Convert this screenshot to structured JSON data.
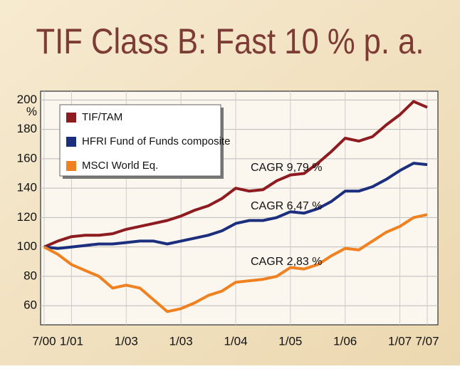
{
  "chart_data": {
    "type": "line",
    "title": "TIF Class B: Fast 10 % p. a.",
    "y_unit": "%",
    "categories": [
      "7/00",
      null,
      "1/01",
      null,
      null,
      null,
      "1/03",
      null,
      null,
      null,
      "1/03",
      null,
      null,
      null,
      "1/04",
      null,
      null,
      null,
      "1/05",
      null,
      null,
      null,
      "1/06",
      null,
      null,
      null,
      "1/07",
      null,
      "7/07"
    ],
    "series": [
      {
        "name": "TIF/TAM",
        "color": "#8e1b1f",
        "values": [
          100,
          104,
          107,
          108,
          108,
          109,
          112,
          114,
          116,
          118,
          121,
          125,
          128,
          133,
          140,
          138,
          139,
          145,
          149,
          150,
          157,
          165,
          174,
          172,
          175,
          183,
          190,
          199,
          195
        ]
      },
      {
        "name": "HFRI Fund of Funds composite",
        "color": "#1c2f7e",
        "values": [
          100,
          99,
          100,
          101,
          102,
          102,
          103,
          104,
          104,
          102,
          104,
          106,
          108,
          111,
          116,
          118,
          118,
          120,
          124,
          123,
          126,
          131,
          138,
          138,
          141,
          146,
          152,
          157,
          156
        ]
      },
      {
        "name": "MSCI World Eq.",
        "color": "#f08121",
        "values": [
          100,
          95,
          88,
          84,
          80,
          72,
          74,
          72,
          64,
          56,
          58,
          62,
          67,
          70,
          76,
          77,
          78,
          80,
          86,
          85,
          88,
          94,
          99,
          98,
          104,
          110,
          114,
          120,
          122
        ]
      }
    ],
    "annotations": [
      "CAGR 9,79 %",
      "CAGR 6,47 %",
      "CAGR 2,83 %"
    ],
    "ylim": [
      47,
      206
    ],
    "yticks": [
      60,
      80,
      100,
      120,
      140,
      160,
      180,
      200
    ],
    "grid": true
  }
}
